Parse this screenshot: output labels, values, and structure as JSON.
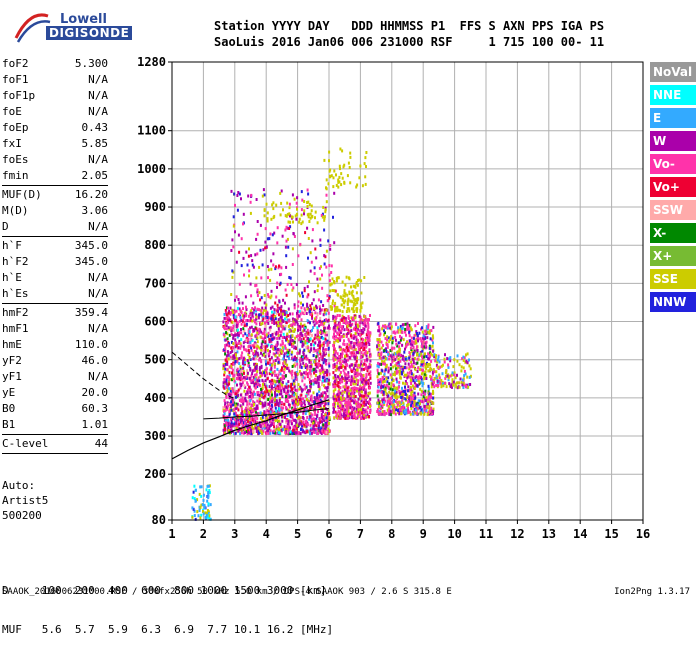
{
  "logo": {
    "line1": "Lowell",
    "line2": "DIGISONDE"
  },
  "header": {
    "line1": "Station YYYY DAY   DDD HHMMSS P1  FFS S AXN PPS IGA PS",
    "line2": "SaoLuis 2016 Jan06 006 231000 RSF     1 715 100 00- 11"
  },
  "params": [
    {
      "label": "foF2",
      "value": "5.300"
    },
    {
      "label": "foF1",
      "value": "N/A"
    },
    {
      "label": "foF1p",
      "value": "N/A"
    },
    {
      "label": "foE",
      "value": "N/A"
    },
    {
      "label": "foEp",
      "value": "0.43"
    },
    {
      "label": "fxI",
      "value": "5.85"
    },
    {
      "label": "foEs",
      "value": "N/A"
    },
    {
      "label": "fmin",
      "value": "2.05"
    },
    {
      "sep": true
    },
    {
      "label": "MUF(D)",
      "value": "16.20"
    },
    {
      "label": "M(D)",
      "value": "3.06"
    },
    {
      "label": "D",
      "value": "N/A"
    },
    {
      "sep": true
    },
    {
      "label": "h`F",
      "value": "345.0"
    },
    {
      "label": "h`F2",
      "value": "345.0"
    },
    {
      "label": "h`E",
      "value": "N/A"
    },
    {
      "label": "h`Es",
      "value": "N/A"
    },
    {
      "sep": true
    },
    {
      "label": "hmF2",
      "value": "359.4"
    },
    {
      "label": "hmF1",
      "value": "N/A"
    },
    {
      "label": "hmE",
      "value": "110.0"
    },
    {
      "label": "yF2",
      "value": "46.0"
    },
    {
      "label": "yF1",
      "value": "N/A"
    },
    {
      "label": "yE",
      "value": "20.0"
    },
    {
      "label": "B0",
      "value": "60.3"
    },
    {
      "label": "B1",
      "value": "1.01"
    },
    {
      "sep": true
    },
    {
      "label": "C-level",
      "value": "44"
    },
    {
      "sep": true
    }
  ],
  "autoscale": {
    "line1": "Auto:",
    "line2": "Artist5",
    "line3": "500200"
  },
  "legend": [
    {
      "label": "NoVal",
      "bg": "#999999",
      "fg": "#ffffff"
    },
    {
      "label": "NNE",
      "bg": "#00ffff",
      "fg": "#ffffff"
    },
    {
      "label": "E",
      "bg": "#33aaff",
      "fg": "#ffffff"
    },
    {
      "label": "W",
      "bg": "#aa00aa",
      "fg": "#ffffff"
    },
    {
      "label": "Vo-",
      "bg": "#ff33aa",
      "fg": "#ffffff"
    },
    {
      "label": "Vo+",
      "bg": "#ee0033",
      "fg": "#ffffff"
    },
    {
      "label": "SSW",
      "bg": "#ffaaaa",
      "fg": "#ffffff"
    },
    {
      "label": "X-",
      "bg": "#008800",
      "fg": "#ffffff"
    },
    {
      "label": "X+",
      "bg": "#77bb33",
      "fg": "#ffffff"
    },
    {
      "label": "SSE",
      "bg": "#cccc00",
      "fg": "#ffffff"
    },
    {
      "label": "NNW",
      "bg": "#2222dd",
      "fg": "#ffffff"
    }
  ],
  "dtable": {
    "line1": "D     100  200  400  600  800 1000 1500 3000 [km]",
    "line2": "MUF   5.6  5.7  5.9  6.3  6.9  7.7 10.1 16.2 [MHz]"
  },
  "footer": "SAAOK_2016006231000.RSF / 300fx256h 50 kHz 5.0 km / DPS-4 SAAOK 903 / 2.6 S 315.8 E",
  "version": "Ion2Png 1.3.17",
  "chart_data": {
    "type": "scatter",
    "xlim": [
      1,
      16
    ],
    "ylim": [
      80,
      1280
    ],
    "x_ticks": [
      1,
      2,
      3,
      4,
      5,
      6,
      7,
      8,
      9,
      10,
      11,
      12,
      13,
      14,
      15,
      16
    ],
    "y_ticks": [
      80,
      200,
      300,
      400,
      500,
      600,
      700,
      800,
      900,
      1000,
      1100,
      1280
    ],
    "x_tick_labels": [
      "1",
      "2",
      "3",
      "4",
      "5",
      "6",
      "7",
      "8",
      "9",
      "10",
      "11",
      "12",
      "13",
      "14",
      "15",
      "16"
    ],
    "y_tick_labels": [
      "80",
      "200",
      "300",
      "400",
      "500",
      "600",
      "700",
      "800",
      "900",
      "1000",
      "1100",
      "1280"
    ],
    "grid": true,
    "clusters": [
      {
        "x0": 2.6,
        "x1": 6.0,
        "y0": 310,
        "y1": 640,
        "n": 2600,
        "colors": [
          "#aa00aa",
          "#ff33aa",
          "#ee0033",
          "#cccc00",
          "#2222dd",
          "#008800",
          "#33aaff",
          "#ffaaaa",
          "#00ffff"
        ],
        "weights": [
          30,
          30,
          8,
          14,
          6,
          3,
          4,
          3,
          2
        ]
      },
      {
        "x0": 6.1,
        "x1": 7.3,
        "y0": 350,
        "y1": 620,
        "n": 900,
        "colors": [
          "#ff33aa",
          "#aa00aa",
          "#ee0033",
          "#cccc00"
        ],
        "weights": [
          45,
          25,
          15,
          15
        ]
      },
      {
        "x0": 7.5,
        "x1": 9.3,
        "y0": 360,
        "y1": 600,
        "n": 1000,
        "colors": [
          "#cccc00",
          "#ff33aa",
          "#aa00aa",
          "#2222dd",
          "#008800",
          "#33aaff"
        ],
        "weights": [
          30,
          30,
          20,
          8,
          5,
          7
        ]
      },
      {
        "x0": 9.3,
        "x1": 10.5,
        "y0": 430,
        "y1": 520,
        "n": 140,
        "colors": [
          "#cccc00",
          "#ff33aa",
          "#aa00aa",
          "#33aaff"
        ],
        "weights": [
          50,
          20,
          15,
          15
        ]
      },
      {
        "x0": 1.6,
        "x1": 2.2,
        "y0": 85,
        "y1": 175,
        "n": 70,
        "colors": [
          "#33aaff",
          "#00ffff",
          "#cccc00",
          "#2222dd"
        ],
        "weights": [
          40,
          30,
          20,
          10
        ]
      },
      {
        "x0": 2.8,
        "x1": 6.2,
        "y0": 640,
        "y1": 950,
        "n": 260,
        "colors": [
          "#aa00aa",
          "#ff33aa",
          "#cccc00",
          "#2222dd",
          "#ee0033"
        ],
        "weights": [
          30,
          25,
          20,
          15,
          10
        ]
      },
      {
        "x0": 6.0,
        "x1": 7.1,
        "y0": 630,
        "y1": 720,
        "n": 110,
        "colors": [
          "#cccc00"
        ],
        "weights": [
          1
        ]
      },
      {
        "x0": 5.8,
        "x1": 7.2,
        "y0": 950,
        "y1": 1060,
        "n": 50,
        "colors": [
          "#cccc00"
        ],
        "weights": [
          1
        ]
      },
      {
        "x0": 3.9,
        "x1": 5.9,
        "y0": 860,
        "y1": 920,
        "n": 60,
        "colors": [
          "#cccc00"
        ],
        "weights": [
          1
        ]
      }
    ],
    "trace_solid": [
      [
        1.0,
        240
      ],
      [
        1.5,
        262
      ],
      [
        2.0,
        282
      ],
      [
        2.5,
        298
      ],
      [
        3.0,
        315
      ],
      [
        3.5,
        328
      ],
      [
        4.0,
        340
      ],
      [
        4.5,
        355
      ],
      [
        5.0,
        368
      ],
      [
        5.5,
        382
      ],
      [
        6.0,
        395
      ]
    ],
    "trace_dashed": [
      [
        1.0,
        520
      ],
      [
        1.5,
        485
      ],
      [
        2.0,
        450
      ],
      [
        2.5,
        420
      ],
      [
        2.8,
        405
      ],
      [
        3.0,
        398
      ]
    ],
    "trace_flat": [
      [
        2.0,
        345
      ],
      [
        2.5,
        347
      ],
      [
        3.0,
        350
      ],
      [
        3.5,
        352
      ],
      [
        4.0,
        355
      ],
      [
        4.5,
        358
      ],
      [
        5.0,
        362
      ],
      [
        5.5,
        368
      ],
      [
        6.0,
        372
      ]
    ]
  }
}
